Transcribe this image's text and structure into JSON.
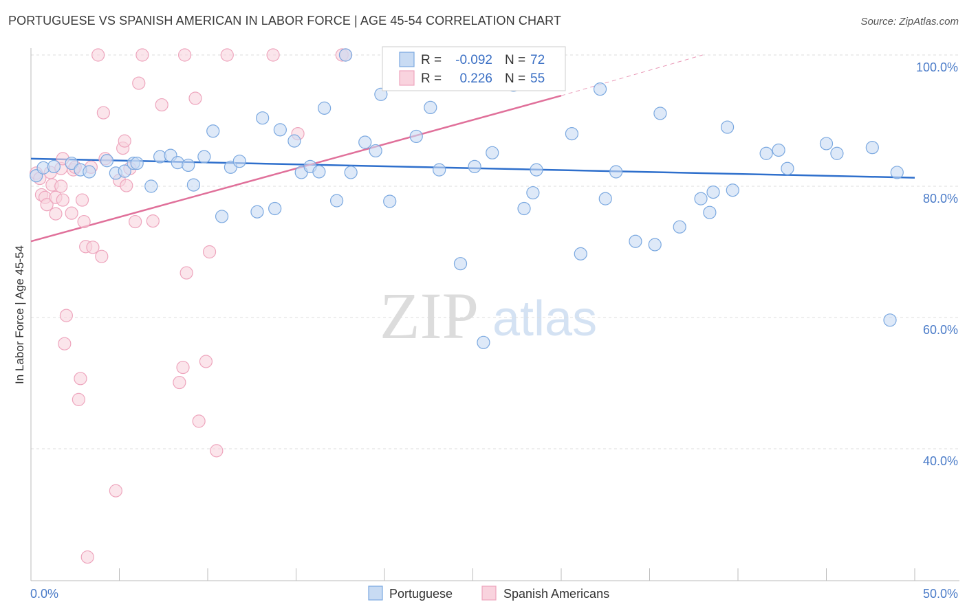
{
  "header": {
    "title": "PORTUGUESE VS SPANISH AMERICAN IN LABOR FORCE | AGE 45-54 CORRELATION CHART",
    "source": "Source: ZipAtlas.com"
  },
  "legend": {
    "r_label": "R =",
    "n_label": "N =",
    "series": [
      {
        "r": "-0.092",
        "n": "72",
        "color": "#7aa8e0"
      },
      {
        "r": "0.226",
        "n": "55",
        "color": "#f0a0b8"
      }
    ]
  },
  "bottom_legend": [
    "Portuguese",
    "Spanish Americans"
  ],
  "watermark": {
    "zip": "ZIP",
    "atlas": "atlas"
  },
  "colors": {
    "blue_fill": "#c8dbf3",
    "blue_stroke": "#7aa8e0",
    "blue_line": "#2e6fcc",
    "pink_fill": "#f9d3de",
    "pink_stroke": "#eea5bd",
    "pink_line": "#e0709a",
    "grid": "#dddddd",
    "tick_label": "#4a7bc8"
  },
  "chart_data": {
    "type": "scatter",
    "title": "PORTUGUESE VS SPANISH AMERICAN IN LABOR FORCE | AGE 45-54 CORRELATION CHART",
    "xlabel": "",
    "ylabel": "In Labor Force | Age 45-54",
    "xlim": [
      0,
      50
    ],
    "ylim": [
      22,
      102
    ],
    "x_ticks": [
      "0.0%",
      "50.0%"
    ],
    "y_ticks": [
      {
        "value": 100,
        "label": "100.0%"
      },
      {
        "value": 80,
        "label": "80.0%"
      },
      {
        "value": 60,
        "label": "60.0%"
      },
      {
        "value": 40,
        "label": "40.0%"
      }
    ],
    "grid": true,
    "series": [
      {
        "name": "Portuguese",
        "r": -0.092,
        "n": 72,
        "trend": {
          "x": [
            0,
            50
          ],
          "y": [
            84.2,
            81.3
          ],
          "dashed_to": null
        },
        "points": [
          [
            0.3,
            81.6
          ],
          [
            0.7,
            82.8
          ],
          [
            1.3,
            83.0
          ],
          [
            2.3,
            83.5
          ],
          [
            2.8,
            82.5
          ],
          [
            3.3,
            82.2
          ],
          [
            4.3,
            83.9
          ],
          [
            4.8,
            82.0
          ],
          [
            5.3,
            82.3
          ],
          [
            5.8,
            83.5
          ],
          [
            6.0,
            83.5
          ],
          [
            6.8,
            80.0
          ],
          [
            7.3,
            84.5
          ],
          [
            7.9,
            84.7
          ],
          [
            8.3,
            83.6
          ],
          [
            9.2,
            80.2
          ],
          [
            9.8,
            84.5
          ],
          [
            10.3,
            88.4
          ],
          [
            8.9,
            83.2
          ],
          [
            10.8,
            75.4
          ],
          [
            11.3,
            82.9
          ],
          [
            11.8,
            83.8
          ],
          [
            12.8,
            76.1
          ],
          [
            13.1,
            90.4
          ],
          [
            13.8,
            76.6
          ],
          [
            14.1,
            88.6
          ],
          [
            14.9,
            86.9
          ],
          [
            15.3,
            82.1
          ],
          [
            15.8,
            83.0
          ],
          [
            16.3,
            82.2
          ],
          [
            16.6,
            91.9
          ],
          [
            17.3,
            77.8
          ],
          [
            17.8,
            100.0
          ],
          [
            18.1,
            82.1
          ],
          [
            18.9,
            86.7
          ],
          [
            19.5,
            85.4
          ],
          [
            19.8,
            94.0
          ],
          [
            20.3,
            77.7
          ],
          [
            21.8,
            87.6
          ],
          [
            22.6,
            92.0
          ],
          [
            23.1,
            82.5
          ],
          [
            24.3,
            68.2
          ],
          [
            25.1,
            83.0
          ],
          [
            25.6,
            56.2
          ],
          [
            26.1,
            85.1
          ],
          [
            26.5,
            99.9
          ],
          [
            27.3,
            95.4
          ],
          [
            27.9,
            76.6
          ],
          [
            28.4,
            79.0
          ],
          [
            28.6,
            82.5
          ],
          [
            30.6,
            88.0
          ],
          [
            31.1,
            69.7
          ],
          [
            32.2,
            94.8
          ],
          [
            32.5,
            78.1
          ],
          [
            33.1,
            82.2
          ],
          [
            34.2,
            71.6
          ],
          [
            35.3,
            71.1
          ],
          [
            35.6,
            91.1
          ],
          [
            36.7,
            73.8
          ],
          [
            37.9,
            78.1
          ],
          [
            38.4,
            76.0
          ],
          [
            38.6,
            79.1
          ],
          [
            39.4,
            89.0
          ],
          [
            39.7,
            79.4
          ],
          [
            41.6,
            85.0
          ],
          [
            42.3,
            85.5
          ],
          [
            42.8,
            82.7
          ],
          [
            45.0,
            86.5
          ],
          [
            45.6,
            85.0
          ],
          [
            47.6,
            85.9
          ],
          [
            48.6,
            59.6
          ],
          [
            49.0,
            82.1
          ]
        ]
      },
      {
        "name": "Spanish Americans",
        "r": 0.226,
        "n": 55,
        "trend": {
          "x": [
            0,
            30
          ],
          "y": [
            71.6,
            93.8
          ],
          "dashed_to": {
            "x": 38,
            "y": 100
          }
        },
        "points": [
          [
            0.3,
            82.0
          ],
          [
            0.5,
            81.2
          ],
          [
            0.6,
            78.7
          ],
          [
            0.8,
            78.3
          ],
          [
            0.9,
            77.2
          ],
          [
            1.1,
            82.1
          ],
          [
            1.2,
            80.2
          ],
          [
            1.4,
            78.3
          ],
          [
            1.4,
            75.8
          ],
          [
            1.7,
            82.7
          ],
          [
            1.7,
            80.0
          ],
          [
            1.8,
            84.2
          ],
          [
            1.8,
            77.9
          ],
          [
            1.9,
            56.0
          ],
          [
            2.0,
            60.3
          ],
          [
            2.4,
            82.5
          ],
          [
            2.3,
            75.9
          ],
          [
            2.5,
            82.9
          ],
          [
            2.7,
            47.5
          ],
          [
            2.8,
            50.7
          ],
          [
            2.9,
            77.9
          ],
          [
            3.0,
            74.6
          ],
          [
            3.1,
            70.8
          ],
          [
            3.2,
            23.5
          ],
          [
            3.4,
            82.9
          ],
          [
            3.5,
            70.7
          ],
          [
            3.8,
            100.0
          ],
          [
            4.0,
            69.3
          ],
          [
            4.1,
            91.2
          ],
          [
            4.2,
            84.2
          ],
          [
            4.8,
            33.6
          ],
          [
            5.0,
            80.9
          ],
          [
            5.2,
            85.8
          ],
          [
            5.3,
            86.9
          ],
          [
            5.4,
            80.1
          ],
          [
            5.6,
            82.7
          ],
          [
            5.9,
            74.6
          ],
          [
            6.1,
            95.7
          ],
          [
            6.9,
            74.7
          ],
          [
            7.4,
            92.4
          ],
          [
            8.4,
            50.1
          ],
          [
            8.6,
            52.4
          ],
          [
            8.8,
            66.8
          ],
          [
            9.3,
            93.4
          ],
          [
            9.5,
            44.2
          ],
          [
            9.9,
            53.3
          ],
          [
            10.1,
            70.0
          ],
          [
            10.5,
            39.7
          ],
          [
            11.1,
            100.0
          ],
          [
            13.7,
            100.0
          ],
          [
            15.1,
            88.0
          ],
          [
            17.6,
            100.0
          ],
          [
            17.8,
            100.0
          ],
          [
            8.7,
            100.0
          ],
          [
            6.3,
            100.0
          ]
        ]
      }
    ]
  }
}
